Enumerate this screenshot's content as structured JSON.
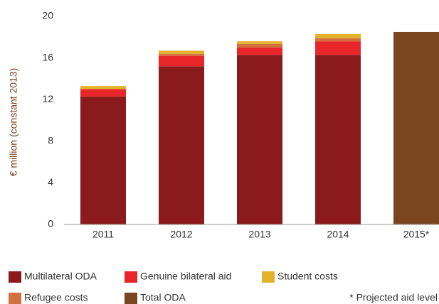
{
  "chart_data": {
    "type": "stacked_bar",
    "y_label": "€ million (constant 2013)",
    "categories": [
      "2011",
      "2012",
      "2013",
      "2014",
      "2015*"
    ],
    "series": [
      {
        "name": "Multilateral ODA",
        "color": "#8b1a1c",
        "values": [
          12.3,
          15.2,
          16.3,
          16.3,
          null
        ]
      },
      {
        "name": "Genuine bilateral aid",
        "color": "#e8262a",
        "values": [
          0.7,
          1.0,
          0.7,
          1.3,
          null
        ]
      },
      {
        "name": "Refugee costs",
        "color": "#d2703f",
        "values": [
          0,
          0.2,
          0.35,
          0.3,
          null
        ]
      },
      {
        "name": "Student costs",
        "color": "#e3b12a",
        "values": [
          0.3,
          0.3,
          0.25,
          0.4,
          null
        ]
      },
      {
        "name": "Total ODA",
        "color": "#7b4522",
        "values": [
          null,
          null,
          null,
          null,
          18.5
        ]
      }
    ],
    "ylim": [
      0,
      20
    ],
    "yticks": [
      0,
      4,
      8,
      12,
      16,
      20
    ],
    "annotation": "* Projected aid level"
  }
}
